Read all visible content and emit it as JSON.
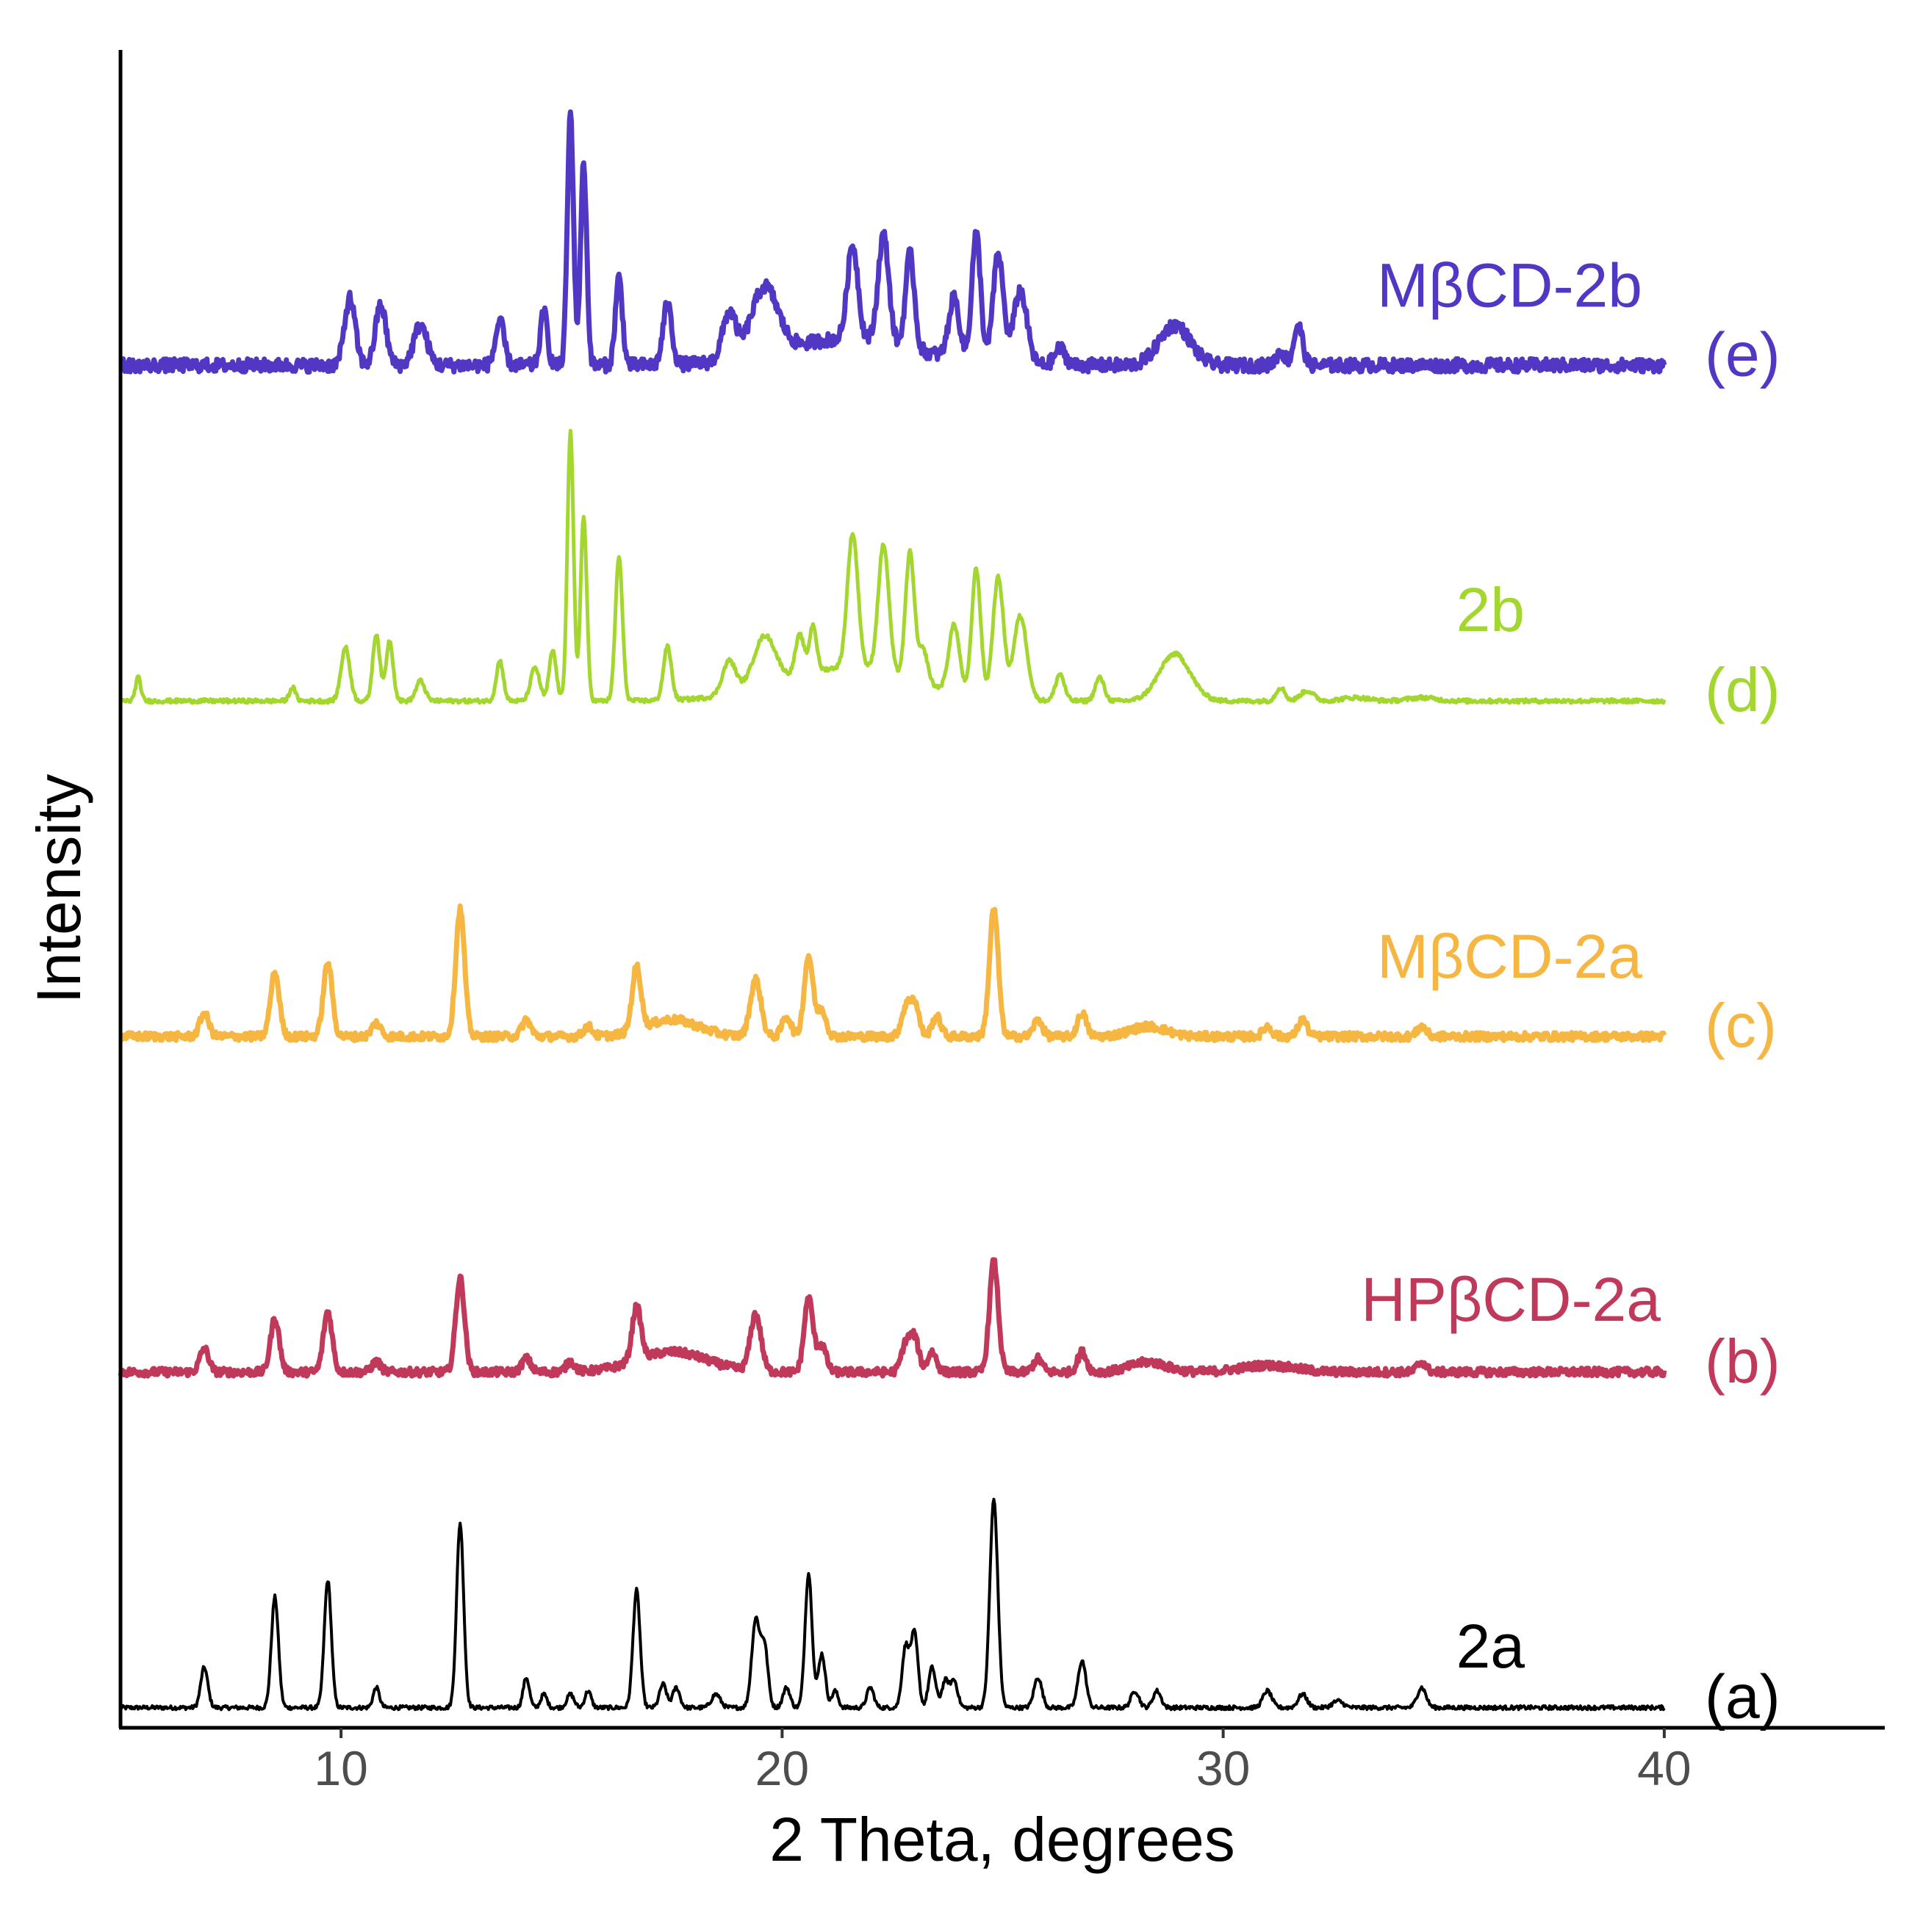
{
  "chart_data": {
    "type": "line",
    "title": "",
    "xlabel": "2 Theta, degrees",
    "ylabel": "Intensity",
    "xlim": [
      5,
      45
    ],
    "ylim": [
      0,
      5.0
    ],
    "xticks": [
      10,
      20,
      30,
      40
    ],
    "grid": false,
    "note": "Stacked PXRD patterns; each series offset vertically. Intensities in arbitrary units relative to series baseline.",
    "series": [
      {
        "key": "a",
        "name": "2a",
        "tag": "(a)",
        "color": "#000000",
        "offset": 0.06,
        "noise": 0.006,
        "linewidth": 4,
        "peaks": [
          [
            6.9,
            0.12,
            0.08
          ],
          [
            8.5,
            0.33,
            0.08
          ],
          [
            9.7,
            0.38,
            0.08
          ],
          [
            10.8,
            0.06,
            0.07
          ],
          [
            12.7,
            0.55,
            0.08
          ],
          [
            14.2,
            0.09,
            0.07
          ],
          [
            14.6,
            0.04,
            0.07
          ],
          [
            15.2,
            0.04,
            0.08
          ],
          [
            15.6,
            0.05,
            0.07
          ],
          [
            16.7,
            0.35,
            0.08
          ],
          [
            17.3,
            0.07,
            0.08
          ],
          [
            17.6,
            0.06,
            0.08
          ],
          [
            18.5,
            0.04,
            0.1
          ],
          [
            19.4,
            0.26,
            0.09
          ],
          [
            19.6,
            0.18,
            0.08
          ],
          [
            20.1,
            0.06,
            0.08
          ],
          [
            20.6,
            0.4,
            0.08
          ],
          [
            20.9,
            0.16,
            0.08
          ],
          [
            21.2,
            0.05,
            0.07
          ],
          [
            22.0,
            0.06,
            0.08
          ],
          [
            22.8,
            0.18,
            0.08
          ],
          [
            23.0,
            0.22,
            0.08
          ],
          [
            23.4,
            0.12,
            0.08
          ],
          [
            23.7,
            0.08,
            0.08
          ],
          [
            23.9,
            0.08,
            0.08
          ],
          [
            24.8,
            0.62,
            0.09
          ],
          [
            25.8,
            0.09,
            0.09
          ],
          [
            26.8,
            0.14,
            0.09
          ],
          [
            28.0,
            0.05,
            0.09
          ],
          [
            28.5,
            0.05,
            0.09
          ],
          [
            31.0,
            0.05,
            0.1
          ],
          [
            31.8,
            0.04,
            0.1
          ],
          [
            32.6,
            0.02,
            0.12
          ],
          [
            34.5,
            0.06,
            0.1
          ]
        ]
      },
      {
        "key": "b",
        "name": "HPβCD-2a",
        "tag": "(b)",
        "color": "#c0395a",
        "offset": 1.06,
        "noise": 0.012,
        "linewidth": 7,
        "peaks": [
          [
            6.9,
            0.07,
            0.1
          ],
          [
            8.5,
            0.16,
            0.1
          ],
          [
            9.7,
            0.18,
            0.1
          ],
          [
            10.8,
            0.03,
            0.1
          ],
          [
            12.7,
            0.28,
            0.1
          ],
          [
            14.2,
            0.04,
            0.1
          ],
          [
            15.2,
            0.03,
            0.1
          ],
          [
            16.7,
            0.16,
            0.1
          ],
          [
            17.5,
            0.06,
            0.8
          ],
          [
            19.4,
            0.17,
            0.12
          ],
          [
            20.6,
            0.22,
            0.1
          ],
          [
            20.9,
            0.08,
            0.1
          ],
          [
            22.8,
            0.08,
            0.1
          ],
          [
            23.0,
            0.1,
            0.1
          ],
          [
            23.4,
            0.06,
            0.1
          ],
          [
            24.8,
            0.33,
            0.1
          ],
          [
            25.8,
            0.04,
            0.1
          ],
          [
            26.8,
            0.06,
            0.1
          ],
          [
            28.3,
            0.03,
            0.4
          ],
          [
            31.0,
            0.02,
            0.6
          ],
          [
            34.5,
            0.03,
            0.1
          ]
        ]
      },
      {
        "key": "c",
        "name": "MβCD-2a",
        "tag": "(c)",
        "color": "#f5b642",
        "offset": 2.06,
        "noise": 0.012,
        "linewidth": 7,
        "peaks": [
          [
            6.9,
            0.07,
            0.1
          ],
          [
            8.5,
            0.19,
            0.1
          ],
          [
            9.7,
            0.22,
            0.1
          ],
          [
            10.8,
            0.04,
            0.1
          ],
          [
            12.7,
            0.38,
            0.1
          ],
          [
            14.2,
            0.05,
            0.1
          ],
          [
            15.6,
            0.03,
            0.1
          ],
          [
            16.7,
            0.19,
            0.1
          ],
          [
            17.5,
            0.05,
            0.6
          ],
          [
            19.4,
            0.17,
            0.12
          ],
          [
            20.1,
            0.06,
            0.1
          ],
          [
            20.6,
            0.24,
            0.1
          ],
          [
            20.9,
            0.08,
            0.1
          ],
          [
            22.8,
            0.08,
            0.1
          ],
          [
            23.0,
            0.1,
            0.1
          ],
          [
            23.5,
            0.06,
            0.1
          ],
          [
            24.8,
            0.38,
            0.1
          ],
          [
            25.8,
            0.05,
            0.1
          ],
          [
            26.8,
            0.07,
            0.1
          ],
          [
            28.3,
            0.03,
            0.4
          ],
          [
            31.0,
            0.03,
            0.1
          ],
          [
            31.8,
            0.05,
            0.1
          ],
          [
            34.5,
            0.03,
            0.1
          ]
        ]
      },
      {
        "key": "d",
        "name": "2b",
        "tag": "(d)",
        "color": "#a3d62e",
        "offset": 3.06,
        "noise": 0.006,
        "linewidth": 5,
        "peaks": [
          [
            5.4,
            0.07,
            0.06
          ],
          [
            8.9,
            0.04,
            0.07
          ],
          [
            10.1,
            0.16,
            0.1
          ],
          [
            10.8,
            0.2,
            0.08
          ],
          [
            11.1,
            0.18,
            0.08
          ],
          [
            11.8,
            0.06,
            0.1
          ],
          [
            13.6,
            0.12,
            0.08
          ],
          [
            14.4,
            0.1,
            0.1
          ],
          [
            14.8,
            0.15,
            0.08
          ],
          [
            15.2,
            0.8,
            0.07
          ],
          [
            15.5,
            0.55,
            0.07
          ],
          [
            16.3,
            0.43,
            0.08
          ],
          [
            17.4,
            0.16,
            0.09
          ],
          [
            18.8,
            0.1,
            0.15
          ],
          [
            19.6,
            0.15,
            0.25
          ],
          [
            20.4,
            0.12,
            0.1
          ],
          [
            20.7,
            0.14,
            0.08
          ],
          [
            21.6,
            0.4,
            0.12
          ],
          [
            22.3,
            0.38,
            0.12
          ],
          [
            22.9,
            0.38,
            0.1
          ],
          [
            23.2,
            0.1,
            0.1
          ],
          [
            23.9,
            0.2,
            0.12
          ],
          [
            24.4,
            0.38,
            0.1
          ],
          [
            24.9,
            0.36,
            0.12
          ],
          [
            25.4,
            0.25,
            0.15
          ],
          [
            21.5,
            0.1,
            1.5
          ],
          [
            26.3,
            0.08,
            0.1
          ],
          [
            27.2,
            0.07,
            0.1
          ],
          [
            28.9,
            0.14,
            0.35
          ],
          [
            31.3,
            0.04,
            0.1
          ],
          [
            31.9,
            0.03,
            0.15
          ],
          [
            33.0,
            0.01,
            0.3
          ],
          [
            34.5,
            0.01,
            0.3
          ]
        ]
      },
      {
        "key": "e",
        "name": "MβCD-2b",
        "tag": "(e)",
        "color": "#5137c4",
        "offset": 4.06,
        "noise": 0.02,
        "linewidth": 7,
        "peaks": [
          [
            10.2,
            0.2,
            0.12
          ],
          [
            10.9,
            0.18,
            0.12
          ],
          [
            11.8,
            0.12,
            0.15
          ],
          [
            13.6,
            0.13,
            0.1
          ],
          [
            14.6,
            0.16,
            0.08
          ],
          [
            15.2,
            0.75,
            0.07
          ],
          [
            15.5,
            0.6,
            0.07
          ],
          [
            16.3,
            0.26,
            0.08
          ],
          [
            17.4,
            0.18,
            0.1
          ],
          [
            18.8,
            0.14,
            0.15
          ],
          [
            19.6,
            0.2,
            0.3
          ],
          [
            21.6,
            0.28,
            0.12
          ],
          [
            22.3,
            0.32,
            0.12
          ],
          [
            22.9,
            0.28,
            0.1
          ],
          [
            23.9,
            0.18,
            0.12
          ],
          [
            24.4,
            0.38,
            0.1
          ],
          [
            24.9,
            0.32,
            0.12
          ],
          [
            25.4,
            0.22,
            0.15
          ],
          [
            21.5,
            0.08,
            1.5
          ],
          [
            26.3,
            0.05,
            0.12
          ],
          [
            28.9,
            0.12,
            0.35
          ],
          [
            31.3,
            0.04,
            0.1
          ],
          [
            31.7,
            0.12,
            0.1
          ]
        ]
      }
    ]
  }
}
